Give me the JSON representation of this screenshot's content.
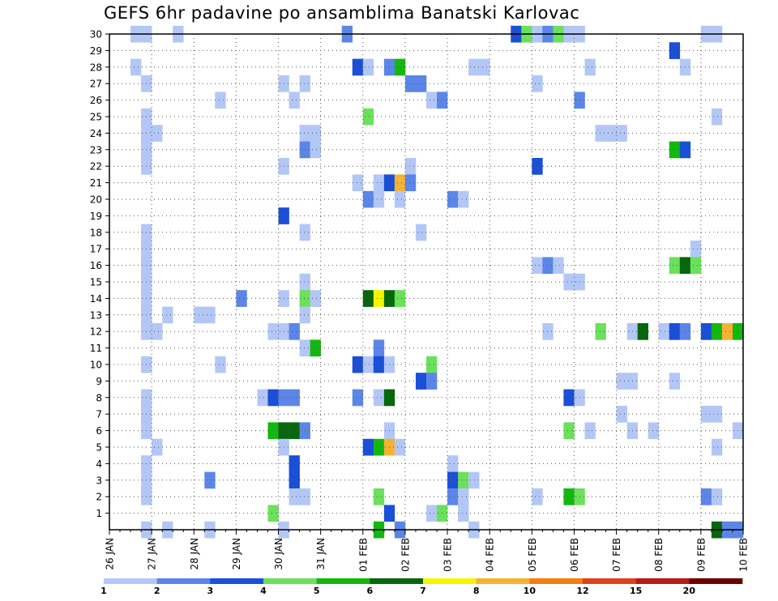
{
  "title": "GEFS 6hr padavine po ansamblima Banatski Karlovac",
  "chart_data": {
    "type": "heatmap",
    "title": "GEFS 6hr padavine po ansamblima Banatski Karlovac",
    "x_axis": {
      "tick_labels": [
        "26 JAN",
        "27 JAN",
        "28 JAN",
        "29 JAN",
        "30 JAN",
        "31 JAN",
        "01 FEB",
        "02 FEB",
        "03 FEB",
        "04 FEB",
        "05 FEB",
        "06 FEB",
        "07 FEB",
        "08 FEB",
        "09 FEB",
        "10 FEB"
      ],
      "range_steps_6h": [
        0,
        60
      ]
    },
    "y_axis": {
      "tick_labels": [
        "1",
        "2",
        "3",
        "4",
        "5",
        "6",
        "7",
        "8",
        "9",
        "10",
        "11",
        "12",
        "13",
        "14",
        "15",
        "16",
        "17",
        "18",
        "19",
        "20",
        "21",
        "22",
        "23",
        "24",
        "25",
        "26",
        "27",
        "28",
        "29",
        "30"
      ],
      "range": [
        0,
        30
      ]
    },
    "grid": true,
    "colorbar": {
      "labels": [
        "1",
        "2",
        "3",
        "4",
        "5",
        "6",
        "7",
        "8",
        "10",
        "12",
        "15",
        "20"
      ],
      "colors": [
        "#b3c7f7",
        "#5b86e8",
        "#1a4fd6",
        "#6be05b",
        "#13b80f",
        "#08660c",
        "#f5f500",
        "#f7b233",
        "#f57d14",
        "#e0401c",
        "#b81a1a",
        "#6b0000"
      ]
    },
    "cells": [
      [
        2,
        30,
        1
      ],
      [
        3,
        30,
        1
      ],
      [
        6,
        30,
        1
      ],
      [
        22,
        30,
        2
      ],
      [
        38,
        30,
        3
      ],
      [
        39,
        30,
        4
      ],
      [
        40,
        30,
        1
      ],
      [
        41,
        30,
        2
      ],
      [
        42,
        30,
        4
      ],
      [
        43,
        30,
        1
      ],
      [
        44,
        30,
        1
      ],
      [
        56,
        30,
        1
      ],
      [
        57,
        30,
        1
      ],
      [
        53,
        29,
        3
      ],
      [
        2,
        28,
        1
      ],
      [
        23,
        28,
        3
      ],
      [
        24,
        28,
        1
      ],
      [
        26,
        28,
        2
      ],
      [
        27,
        28,
        5
      ],
      [
        34,
        28,
        1
      ],
      [
        35,
        28,
        1
      ],
      [
        45,
        28,
        1
      ],
      [
        54,
        28,
        1
      ],
      [
        3,
        27,
        1
      ],
      [
        16,
        27,
        1
      ],
      [
        18,
        27,
        1
      ],
      [
        28,
        27,
        2
      ],
      [
        29,
        27,
        2
      ],
      [
        40,
        27,
        1
      ],
      [
        10,
        26,
        1
      ],
      [
        17,
        26,
        1
      ],
      [
        30,
        26,
        1
      ],
      [
        31,
        26,
        2
      ],
      [
        44,
        26,
        2
      ],
      [
        3,
        25,
        1
      ],
      [
        24,
        25,
        4
      ],
      [
        57,
        25,
        1
      ],
      [
        3,
        24,
        1
      ],
      [
        4,
        24,
        1
      ],
      [
        18,
        24,
        1
      ],
      [
        19,
        24,
        1
      ],
      [
        46,
        24,
        1
      ],
      [
        47,
        24,
        1
      ],
      [
        48,
        24,
        1
      ],
      [
        3,
        23,
        1
      ],
      [
        18,
        23,
        2
      ],
      [
        19,
        23,
        1
      ],
      [
        53,
        23,
        5
      ],
      [
        54,
        23,
        3
      ],
      [
        3,
        22,
        1
      ],
      [
        16,
        22,
        1
      ],
      [
        28,
        22,
        1
      ],
      [
        40,
        22,
        3
      ],
      [
        23,
        21,
        1
      ],
      [
        25,
        21,
        1
      ],
      [
        26,
        21,
        3
      ],
      [
        27,
        21,
        8
      ],
      [
        28,
        21,
        2
      ],
      [
        24,
        20,
        2
      ],
      [
        25,
        20,
        1
      ],
      [
        27,
        20,
        1
      ],
      [
        32,
        20,
        2
      ],
      [
        33,
        20,
        1
      ],
      [
        16,
        19,
        3
      ],
      [
        3,
        18,
        1
      ],
      [
        18,
        18,
        1
      ],
      [
        29,
        18,
        1
      ],
      [
        3,
        17,
        1
      ],
      [
        55,
        17,
        1
      ],
      [
        3,
        16,
        1
      ],
      [
        40,
        16,
        1
      ],
      [
        41,
        16,
        2
      ],
      [
        42,
        16,
        1
      ],
      [
        53,
        16,
        4
      ],
      [
        54,
        16,
        6
      ],
      [
        55,
        16,
        4
      ],
      [
        3,
        15,
        1
      ],
      [
        18,
        15,
        1
      ],
      [
        43,
        15,
        1
      ],
      [
        44,
        15,
        1
      ],
      [
        3,
        14,
        1
      ],
      [
        12,
        14,
        2
      ],
      [
        16,
        14,
        1
      ],
      [
        18,
        14,
        4
      ],
      [
        19,
        14,
        1
      ],
      [
        24,
        14,
        6
      ],
      [
        25,
        14,
        7
      ],
      [
        26,
        14,
        6
      ],
      [
        27,
        14,
        4
      ],
      [
        3,
        13,
        1
      ],
      [
        5,
        13,
        1
      ],
      [
        8,
        13,
        1
      ],
      [
        9,
        13,
        1
      ],
      [
        18,
        13,
        1
      ],
      [
        3,
        12,
        1
      ],
      [
        4,
        12,
        1
      ],
      [
        15,
        12,
        1
      ],
      [
        16,
        12,
        1
      ],
      [
        17,
        12,
        2
      ],
      [
        41,
        12,
        1
      ],
      [
        46,
        12,
        4
      ],
      [
        49,
        12,
        1
      ],
      [
        50,
        12,
        6
      ],
      [
        52,
        12,
        1
      ],
      [
        53,
        12,
        3
      ],
      [
        54,
        12,
        2
      ],
      [
        56,
        12,
        3
      ],
      [
        57,
        12,
        5
      ],
      [
        58,
        12,
        8
      ],
      [
        59,
        12,
        5
      ],
      [
        18,
        11,
        1
      ],
      [
        19,
        11,
        5
      ],
      [
        25,
        11,
        2
      ],
      [
        3,
        10,
        1
      ],
      [
        10,
        10,
        1
      ],
      [
        23,
        10,
        3
      ],
      [
        24,
        10,
        1
      ],
      [
        25,
        10,
        3
      ],
      [
        26,
        10,
        1
      ],
      [
        30,
        10,
        4
      ],
      [
        29,
        9,
        3
      ],
      [
        30,
        9,
        2
      ],
      [
        48,
        9,
        1
      ],
      [
        49,
        9,
        1
      ],
      [
        53,
        9,
        1
      ],
      [
        3,
        8,
        1
      ],
      [
        14,
        8,
        1
      ],
      [
        15,
        8,
        3
      ],
      [
        16,
        8,
        2
      ],
      [
        17,
        8,
        2
      ],
      [
        23,
        8,
        2
      ],
      [
        25,
        8,
        1
      ],
      [
        26,
        8,
        6
      ],
      [
        43,
        8,
        3
      ],
      [
        44,
        8,
        1
      ],
      [
        3,
        7,
        1
      ],
      [
        48,
        7,
        1
      ],
      [
        56,
        7,
        1
      ],
      [
        57,
        7,
        1
      ],
      [
        3,
        6,
        1
      ],
      [
        15,
        6,
        5
      ],
      [
        16,
        6,
        6
      ],
      [
        17,
        6,
        6
      ],
      [
        18,
        6,
        2
      ],
      [
        26,
        6,
        1
      ],
      [
        43,
        6,
        4
      ],
      [
        45,
        6,
        1
      ],
      [
        49,
        6,
        1
      ],
      [
        51,
        6,
        1
      ],
      [
        59,
        6,
        1
      ],
      [
        4,
        5,
        1
      ],
      [
        16,
        5,
        1
      ],
      [
        24,
        5,
        3
      ],
      [
        25,
        5,
        5
      ],
      [
        26,
        5,
        8
      ],
      [
        27,
        5,
        1
      ],
      [
        57,
        5,
        1
      ],
      [
        3,
        4,
        1
      ],
      [
        17,
        4,
        3
      ],
      [
        32,
        4,
        1
      ],
      [
        3,
        3,
        1
      ],
      [
        9,
        3,
        2
      ],
      [
        17,
        3,
        3
      ],
      [
        32,
        3,
        3
      ],
      [
        33,
        3,
        4
      ],
      [
        34,
        3,
        1
      ],
      [
        3,
        2,
        1
      ],
      [
        17,
        2,
        1
      ],
      [
        18,
        2,
        1
      ],
      [
        25,
        2,
        4
      ],
      [
        32,
        2,
        2
      ],
      [
        33,
        2,
        1
      ],
      [
        40,
        2,
        1
      ],
      [
        43,
        2,
        5
      ],
      [
        44,
        2,
        4
      ],
      [
        56,
        2,
        2
      ],
      [
        57,
        2,
        1
      ],
      [
        15,
        1,
        4
      ],
      [
        26,
        1,
        3
      ],
      [
        30,
        1,
        1
      ],
      [
        31,
        1,
        4
      ],
      [
        33,
        1,
        1
      ],
      [
        3,
        0,
        1
      ],
      [
        5,
        0,
        1
      ],
      [
        9,
        0,
        1
      ],
      [
        16,
        0,
        1
      ],
      [
        25,
        0,
        5
      ],
      [
        27,
        0,
        2
      ],
      [
        34,
        0,
        1
      ],
      [
        57,
        0,
        6
      ],
      [
        58,
        0,
        2
      ],
      [
        59,
        0,
        2
      ]
    ]
  }
}
